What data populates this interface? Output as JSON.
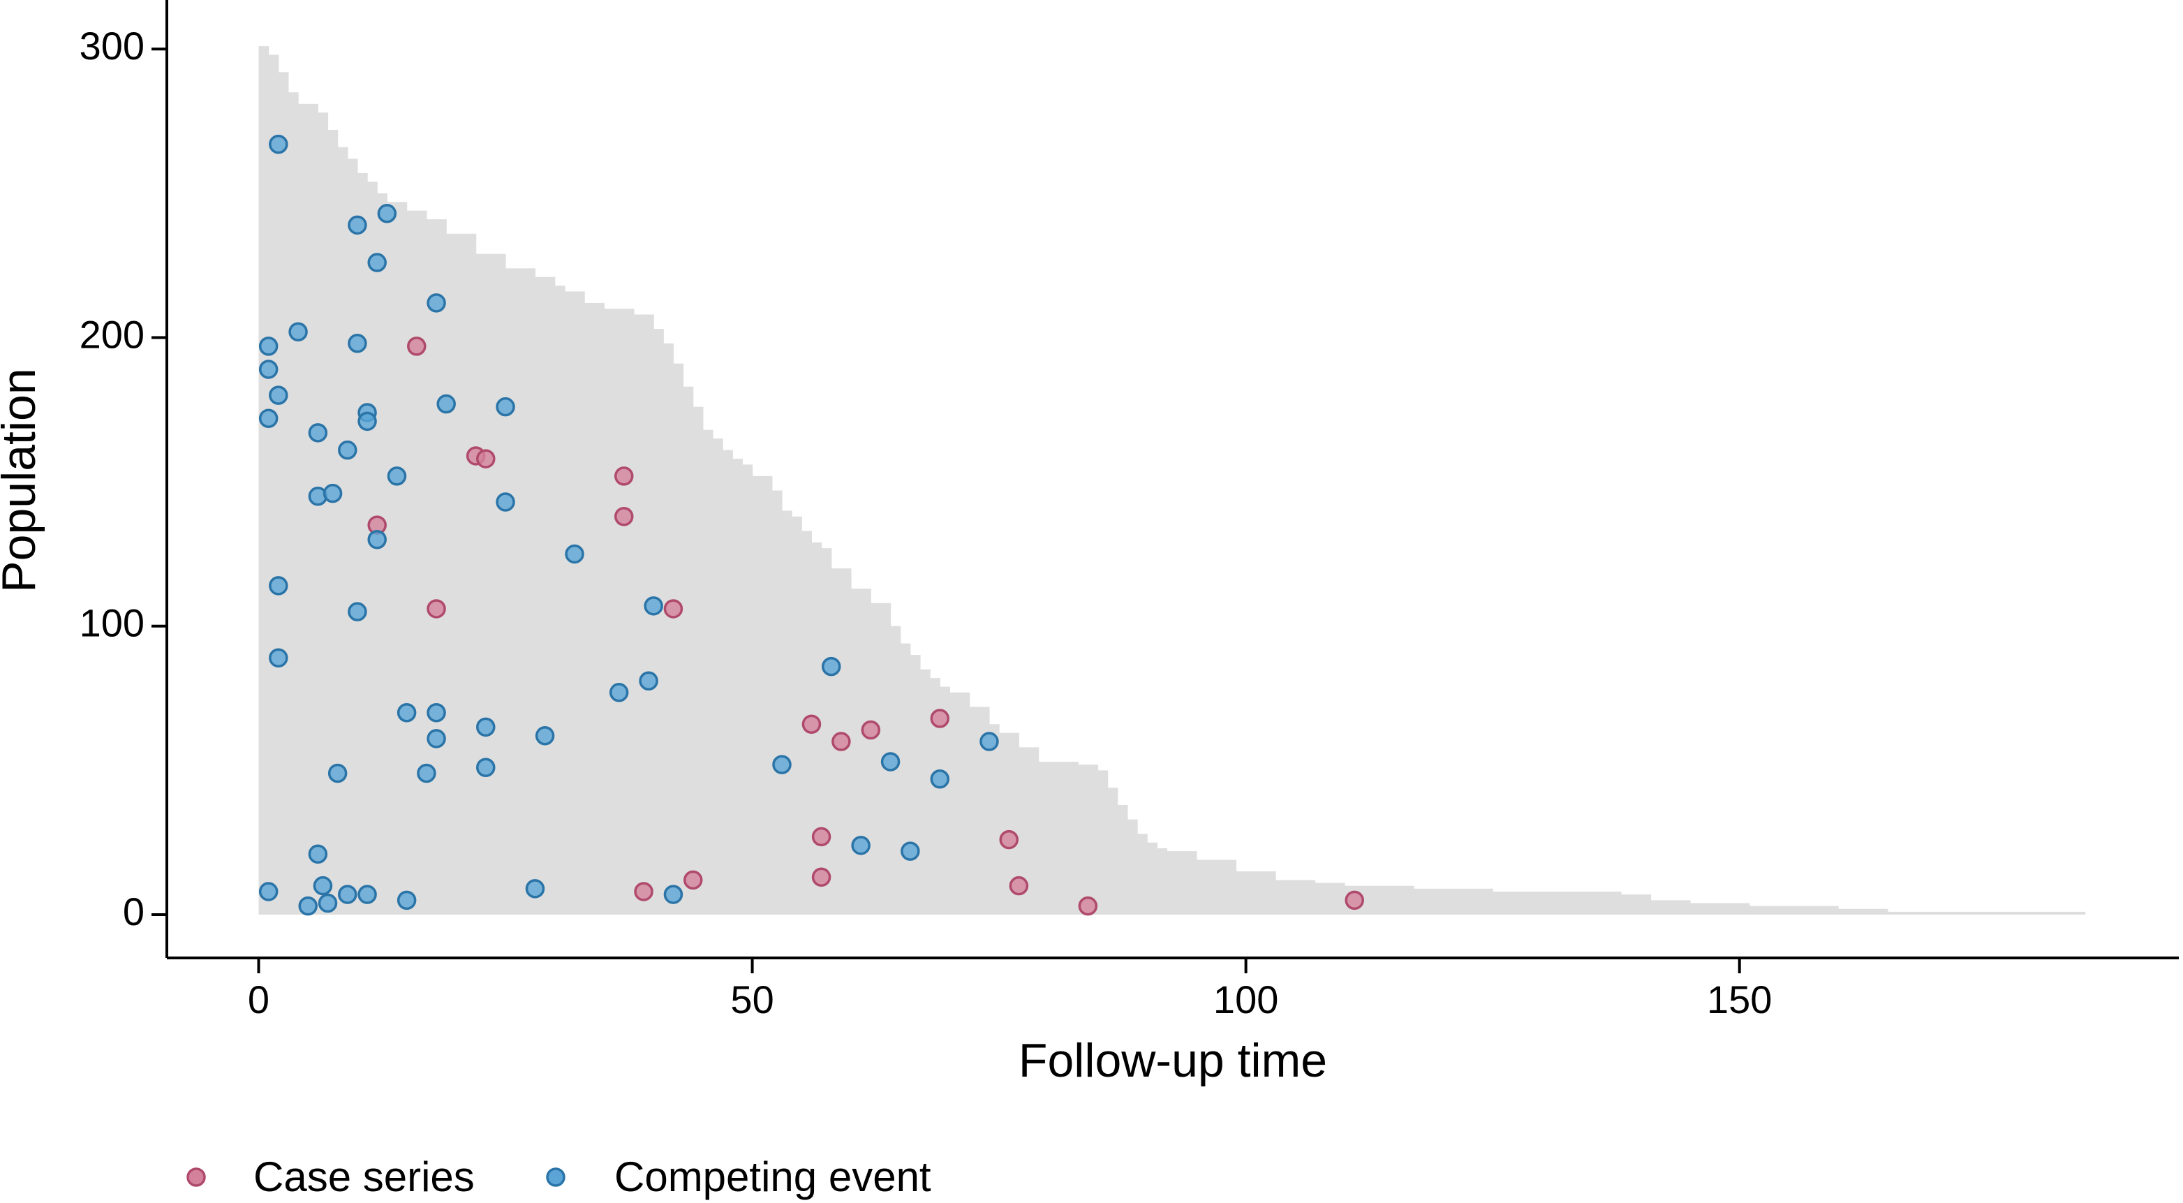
{
  "chart_data": {
    "type": "scatter",
    "x_label": "Follow-up time",
    "y_label": "Population",
    "xlim": [
      -9.3,
      194.5
    ],
    "ylim": [
      -15,
      317
    ],
    "xticks": [
      0,
      50,
      100,
      150
    ],
    "yticks": [
      0,
      100,
      200,
      300
    ],
    "grid": false,
    "legend": "bottom-left",
    "population": {
      "color": "#dedede",
      "x": [
        0,
        1,
        2,
        3,
        4,
        6,
        7,
        8,
        9,
        10,
        11,
        12,
        13,
        15,
        17,
        19,
        22,
        25,
        28,
        30,
        31,
        33,
        35,
        38,
        40,
        41,
        42,
        43,
        44,
        45,
        46,
        47,
        48,
        49,
        50,
        52,
        53,
        54,
        55,
        56,
        57,
        58,
        60,
        62,
        64,
        65,
        66,
        67,
        68,
        69,
        70,
        72,
        74,
        75,
        77,
        79,
        83,
        85,
        86,
        87,
        88,
        89,
        90,
        91,
        92,
        95,
        99,
        103,
        107,
        110,
        117,
        125,
        138,
        141,
        145,
        151,
        160,
        165,
        185
      ],
      "values": [
        301,
        298,
        292,
        285,
        281,
        278,
        272,
        266,
        262,
        257,
        254,
        250,
        247,
        244,
        241,
        236,
        229,
        224,
        221,
        218,
        216,
        212,
        210,
        208,
        203,
        198,
        191,
        183,
        176,
        168,
        165,
        161,
        158,
        156,
        152,
        147,
        140,
        138,
        133,
        129,
        127,
        120,
        113,
        108,
        100,
        94,
        90,
        85,
        82,
        79,
        77,
        72,
        66,
        63,
        58,
        53,
        52,
        50,
        44,
        38,
        33,
        28,
        25,
        23,
        22,
        19,
        15,
        12,
        11,
        10,
        9,
        8,
        7,
        5,
        4,
        3,
        2,
        1,
        0
      ]
    },
    "series": [
      {
        "name": "Case series",
        "color": "#d4829c",
        "stroke": "#b04a6c",
        "x": [
          16,
          12,
          22,
          23,
          18,
          37,
          37,
          42,
          39,
          44,
          56,
          59,
          62,
          69,
          57,
          57,
          76,
          77,
          84,
          111
        ],
        "values": [
          197,
          135,
          159,
          158,
          106,
          152,
          138,
          106,
          8,
          12,
          66,
          60,
          64,
          68,
          27,
          13,
          26,
          10,
          3,
          5
        ]
      },
      {
        "name": "Competing event",
        "color": "#5aa5d6",
        "stroke": "#2a74a8",
        "x": [
          2,
          10,
          13,
          12,
          18,
          1,
          4,
          10,
          1,
          2,
          1,
          11,
          11,
          19,
          25,
          6,
          9,
          14,
          6,
          7.5,
          25,
          12,
          32,
          2,
          10,
          40,
          2,
          58,
          39.5,
          36.5,
          15,
          18,
          18,
          23,
          29,
          23,
          17,
          8,
          53,
          64,
          69,
          74,
          61,
          66,
          6,
          1,
          6.5,
          9,
          11,
          7,
          5,
          15,
          28,
          42
        ],
        "values": [
          267,
          239,
          243,
          226,
          212,
          197,
          202,
          198,
          189,
          180,
          172,
          174,
          171,
          177,
          176,
          167,
          161,
          152,
          145,
          146,
          143,
          130,
          125,
          114,
          105,
          107,
          89,
          86,
          81,
          77,
          70,
          70,
          61,
          65,
          62,
          51,
          49,
          49,
          52,
          53,
          47,
          60,
          24,
          22,
          21,
          8,
          10,
          7,
          7,
          4,
          3,
          5,
          9,
          7
        ]
      }
    ]
  }
}
